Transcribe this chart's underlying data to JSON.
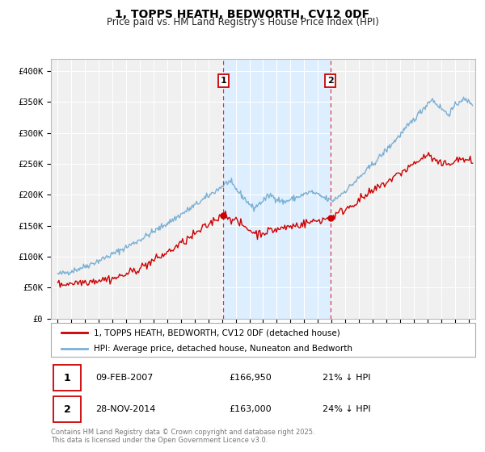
{
  "title": "1, TOPPS HEATH, BEDWORTH, CV12 0DF",
  "subtitle": "Price paid vs. HM Land Registry's House Price Index (HPI)",
  "legend_entry1": "1, TOPPS HEATH, BEDWORTH, CV12 0DF (detached house)",
  "legend_entry2": "HPI: Average price, detached house, Nuneaton and Bedworth",
  "color_red": "#cc0000",
  "color_blue": "#7ab0d4",
  "color_shading": "#ddeeff",
  "marker1_date": "09-FEB-2007",
  "marker1_price": "£166,950",
  "marker1_hpi": "21% ↓ HPI",
  "marker1_x": 2007.1,
  "marker1_y": 166950,
  "marker2_date": "28-NOV-2014",
  "marker2_price": "£163,000",
  "marker2_hpi": "24% ↓ HPI",
  "marker2_x": 2014.92,
  "marker2_y": 163000,
  "vline1_x": 2007.1,
  "vline2_x": 2014.92,
  "ylim": [
    0,
    420000
  ],
  "xlim_left": 1994.5,
  "xlim_right": 2025.5,
  "yticks": [
    0,
    50000,
    100000,
    150000,
    200000,
    250000,
    300000,
    350000,
    400000
  ],
  "ytick_labels": [
    "£0",
    "£50K",
    "£100K",
    "£150K",
    "£200K",
    "£250K",
    "£300K",
    "£350K",
    "£400K"
  ],
  "xticks": [
    1995,
    1996,
    1997,
    1998,
    1999,
    2000,
    2001,
    2002,
    2003,
    2004,
    2005,
    2006,
    2007,
    2008,
    2009,
    2010,
    2011,
    2012,
    2013,
    2014,
    2015,
    2016,
    2017,
    2018,
    2019,
    2020,
    2021,
    2022,
    2023,
    2024,
    2025
  ],
  "footnote": "Contains HM Land Registry data © Crown copyright and database right 2025.\nThis data is licensed under the Open Government Licence v3.0.",
  "background_color": "#ffffff",
  "plot_bg_color": "#f0f0f0",
  "grid_color": "#ffffff"
}
